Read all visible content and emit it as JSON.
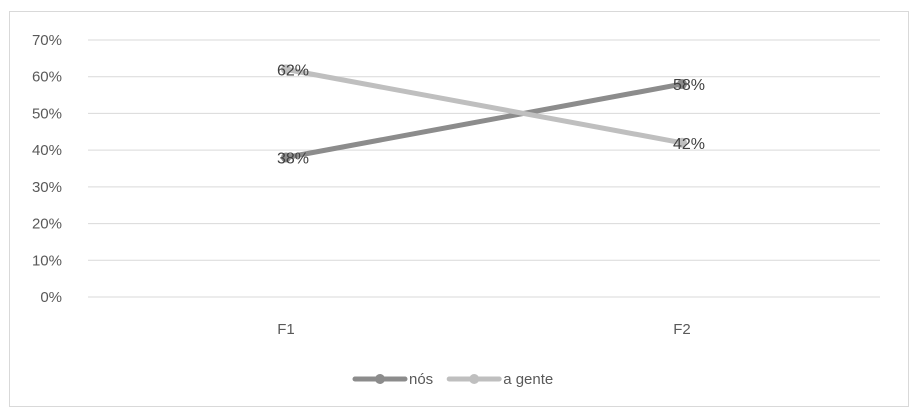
{
  "chart_data": {
    "type": "line",
    "categories": [
      "F1",
      "F2"
    ],
    "series": [
      {
        "name": "nós",
        "values": [
          38,
          58
        ],
        "color": "#8c8c8c"
      },
      {
        "name": "a gente",
        "values": [
          62,
          42
        ],
        "color": "#bfbfbf"
      }
    ],
    "data_labels": [
      [
        "38%",
        "58%"
      ],
      [
        "62%",
        "42%"
      ]
    ],
    "y_tick_labels": [
      "0%",
      "10%",
      "20%",
      "30%",
      "40%",
      "50%",
      "60%",
      "70%"
    ],
    "ylim": [
      0,
      70
    ],
    "y_unit": "%",
    "grid": true,
    "legend_position": "bottom",
    "title": "",
    "xlabel": "",
    "ylabel": ""
  }
}
